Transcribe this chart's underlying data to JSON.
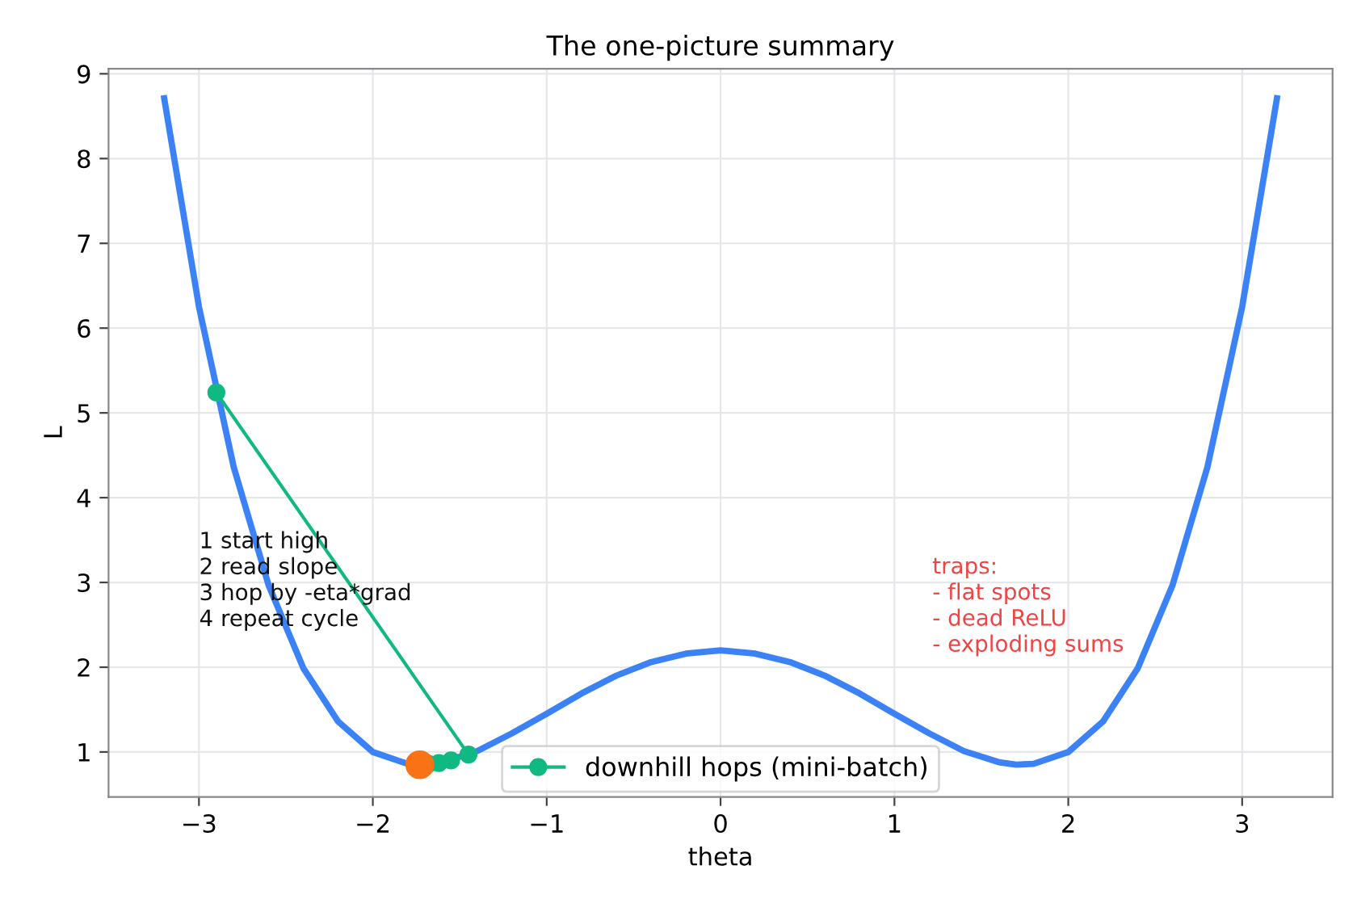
{
  "chart_data": {
    "type": "line",
    "title": "The one-picture summary",
    "xlabel": "theta",
    "ylabel": "L",
    "xlim": [
      -3.52,
      3.52
    ],
    "ylim": [
      0.47,
      9.06
    ],
    "xticks": [
      {
        "value": -3,
        "label": "−3"
      },
      {
        "value": -2,
        "label": "−2"
      },
      {
        "value": -1,
        "label": "−1"
      },
      0,
      1,
      2,
      3
    ],
    "yticks": [
      1,
      2,
      3,
      4,
      5,
      6,
      7,
      8,
      9
    ],
    "grid": true,
    "legend": "bottom",
    "series": [
      {
        "color": "#3b82f6",
        "marker": "none",
        "x": [
          -3.2,
          -3.0,
          -2.8,
          -2.6,
          -2.4,
          -2.2,
          -2.0,
          -1.8,
          -1.6,
          -1.4,
          -1.2,
          -1.0,
          -0.8,
          -0.6,
          -0.4,
          -0.2,
          0,
          0.2,
          0.4,
          0.6,
          0.8,
          1.0,
          1.2,
          1.4,
          1.6,
          1.7,
          1.8,
          2.0,
          2.2,
          2.4,
          2.6,
          2.8,
          3.0,
          3.2
        ],
        "values": [
          8.71,
          6.25,
          4.36,
          2.97,
          1.99,
          1.36,
          1.0,
          0.86,
          0.88,
          1.01,
          1.22,
          1.45,
          1.69,
          1.9,
          2.06,
          2.16,
          2.2,
          2.16,
          2.06,
          1.9,
          1.69,
          1.45,
          1.22,
          1.01,
          0.88,
          0.85,
          0.86,
          1.0,
          1.36,
          1.99,
          2.97,
          4.36,
          6.25,
          8.71
        ]
      },
      {
        "type": "line",
        "name": "downhill hops (mini-batch)",
        "color": "#10b981",
        "marker": "circle",
        "x": [
          -2.9,
          -1.45,
          -1.55,
          -1.62,
          -1.68
        ],
        "values": [
          5.24,
          0.97,
          0.9,
          0.87,
          0.86
        ]
      },
      {
        "type": "scatter",
        "color": "#f97316",
        "marker": "circle",
        "x": [
          -1.73
        ],
        "values": [
          0.85
        ]
      }
    ],
    "annotations": [
      "1 start high\n2 read slope\n3 hop by -eta*grad\n4 repeat cycle",
      "traps:\n- flat spots\n- dead ReLU\n- exploding sums"
    ]
  }
}
